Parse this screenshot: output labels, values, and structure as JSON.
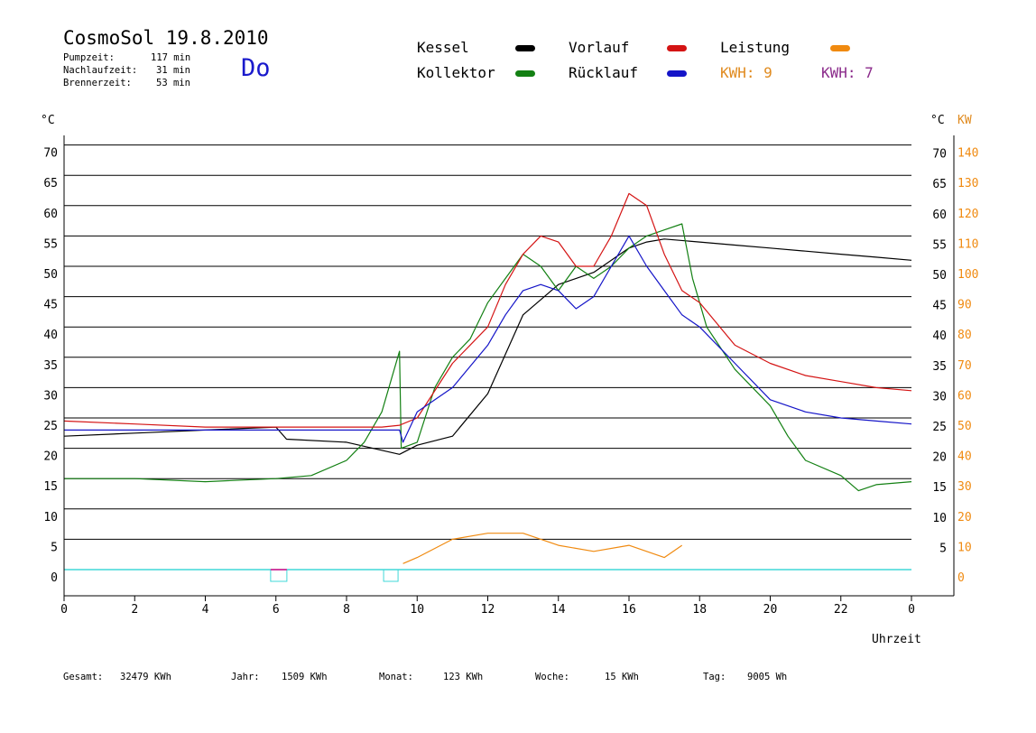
{
  "header": {
    "title": "CosmoSol 19.8.2010",
    "day": "Do",
    "stats": [
      {
        "label": "Pumpzeit:",
        "value": "117 min"
      },
      {
        "label": "Nachlaufzeit:",
        "value": "31 min"
      },
      {
        "label": "Brennerzeit:",
        "value": "53 min"
      }
    ]
  },
  "legend": {
    "kessel": "Kessel",
    "kollektor": "Kollektor",
    "vorlauf": "Vorlauf",
    "ruecklauf": "Rücklauf",
    "leistung": "Leistung",
    "kwh1": "KWH: 9",
    "kwh2": "KWH: 7"
  },
  "axes": {
    "left_unit": "°C",
    "right_unit": "°C",
    "kw_unit": "KW",
    "x_label": "Uhrzeit"
  },
  "footer": {
    "gesamt_label": "Gesamt:",
    "gesamt_value": "32479 KWh",
    "jahr_label": "Jahr:",
    "jahr_value": "1509 KWh",
    "monat_label": "Monat:",
    "monat_value": "123 KWh",
    "woche_label": "Woche:",
    "woche_value": "15 KWh",
    "tag_label": "Tag:",
    "tag_value": "9005 Wh"
  },
  "colors": {
    "kessel": "#000000",
    "kollektor": "#138013",
    "vorlauf": "#d41414",
    "ruecklauf": "#1414c8",
    "leistung": "#f08a10",
    "kwh2": "#8b2b8b",
    "baseline": "#40d8d8"
  },
  "chart_data": {
    "type": "line",
    "title": "CosmoSol 19.8.2010",
    "xlabel": "Uhrzeit",
    "ylabel": "°C",
    "y2label": "KW",
    "xlim": [
      0,
      24
    ],
    "ylim": [
      0,
      70
    ],
    "y2lim": [
      0,
      140
    ],
    "x_ticks": [
      "0",
      "2",
      "4",
      "6",
      "8",
      "10",
      "12",
      "14",
      "16",
      "18",
      "20",
      "22",
      "0"
    ],
    "y_ticks": [
      0,
      5,
      10,
      15,
      20,
      25,
      30,
      35,
      40,
      45,
      50,
      55,
      60,
      65,
      70
    ],
    "y_ticks_right": [
      5,
      10,
      15,
      20,
      25,
      30,
      35,
      40,
      45,
      50,
      55,
      60,
      65,
      70
    ],
    "y2_ticks": [
      0,
      10,
      20,
      30,
      40,
      50,
      60,
      70,
      80,
      90,
      100,
      110,
      120,
      130,
      140
    ],
    "grid": true,
    "legend_position": "top",
    "series": [
      {
        "name": "Kessel",
        "x": [
          0,
          2,
          4,
          6,
          6.3,
          8,
          9.5,
          10,
          11,
          12,
          13,
          14,
          15,
          16,
          16.5,
          17,
          18,
          19,
          20,
          21,
          22,
          23,
          24
        ],
        "values": [
          22,
          22.5,
          23,
          23.5,
          21.5,
          21,
          19,
          20.5,
          22,
          29,
          42,
          47,
          49,
          53,
          54,
          54.5,
          54,
          53.5,
          53,
          52.5,
          52,
          51.5,
          51
        ]
      },
      {
        "name": "Kollektor",
        "x": [
          0,
          2,
          4,
          6,
          7,
          8,
          8.5,
          9,
          9.5,
          9.55,
          10,
          10.5,
          11,
          11.5,
          12,
          12.5,
          13,
          13.5,
          14,
          14.5,
          15,
          15.5,
          16,
          16.5,
          17,
          17.5,
          17.8,
          18,
          18.2,
          19,
          20,
          20.5,
          21,
          22,
          22.5,
          23,
          24
        ],
        "values": [
          15,
          15,
          14.5,
          15,
          15.5,
          18,
          21,
          26,
          36,
          20,
          21,
          30,
          35,
          38,
          44,
          48,
          52,
          50,
          46,
          50,
          48,
          50,
          53,
          55,
          56,
          57,
          48,
          44,
          40,
          33,
          27,
          22,
          18,
          15.5,
          13,
          14,
          14.5
        ]
      },
      {
        "name": "Vorlauf",
        "x": [
          0,
          2,
          4,
          6,
          8,
          9,
          9.5,
          10,
          11,
          12,
          12.5,
          13,
          13.5,
          14,
          14.5,
          15,
          15.5,
          16,
          16.5,
          17,
          17.5,
          18,
          19,
          20,
          21,
          22,
          23,
          24
        ],
        "values": [
          24.5,
          24,
          23.5,
          23.5,
          23.5,
          23.5,
          23.8,
          25,
          34,
          40,
          47,
          52,
          55,
          54,
          50,
          50,
          55,
          62,
          60,
          52,
          46,
          44,
          37,
          34,
          32,
          31,
          30,
          29.5
        ]
      },
      {
        "name": "Rücklauf",
        "x": [
          0,
          2,
          4,
          6,
          8,
          9,
          9.5,
          9.6,
          10,
          11,
          12,
          12.5,
          13,
          13.5,
          14,
          14.5,
          15,
          15.5,
          16,
          16.5,
          17,
          17.5,
          18,
          19,
          20,
          21,
          22,
          23,
          24
        ],
        "values": [
          23,
          23,
          23,
          23,
          23,
          23,
          23,
          21,
          26,
          30,
          37,
          42,
          46,
          47,
          46,
          43,
          45,
          50,
          55,
          50,
          46,
          42,
          40,
          34,
          28,
          26,
          25,
          24.5,
          24
        ]
      },
      {
        "name": "Leistung",
        "x": [
          9.6,
          10,
          11,
          12,
          13,
          14,
          15,
          16,
          17,
          17.5
        ],
        "values": [
          1,
          2,
          5,
          6,
          6,
          4,
          3,
          4,
          2,
          4
        ]
      }
    ]
  }
}
